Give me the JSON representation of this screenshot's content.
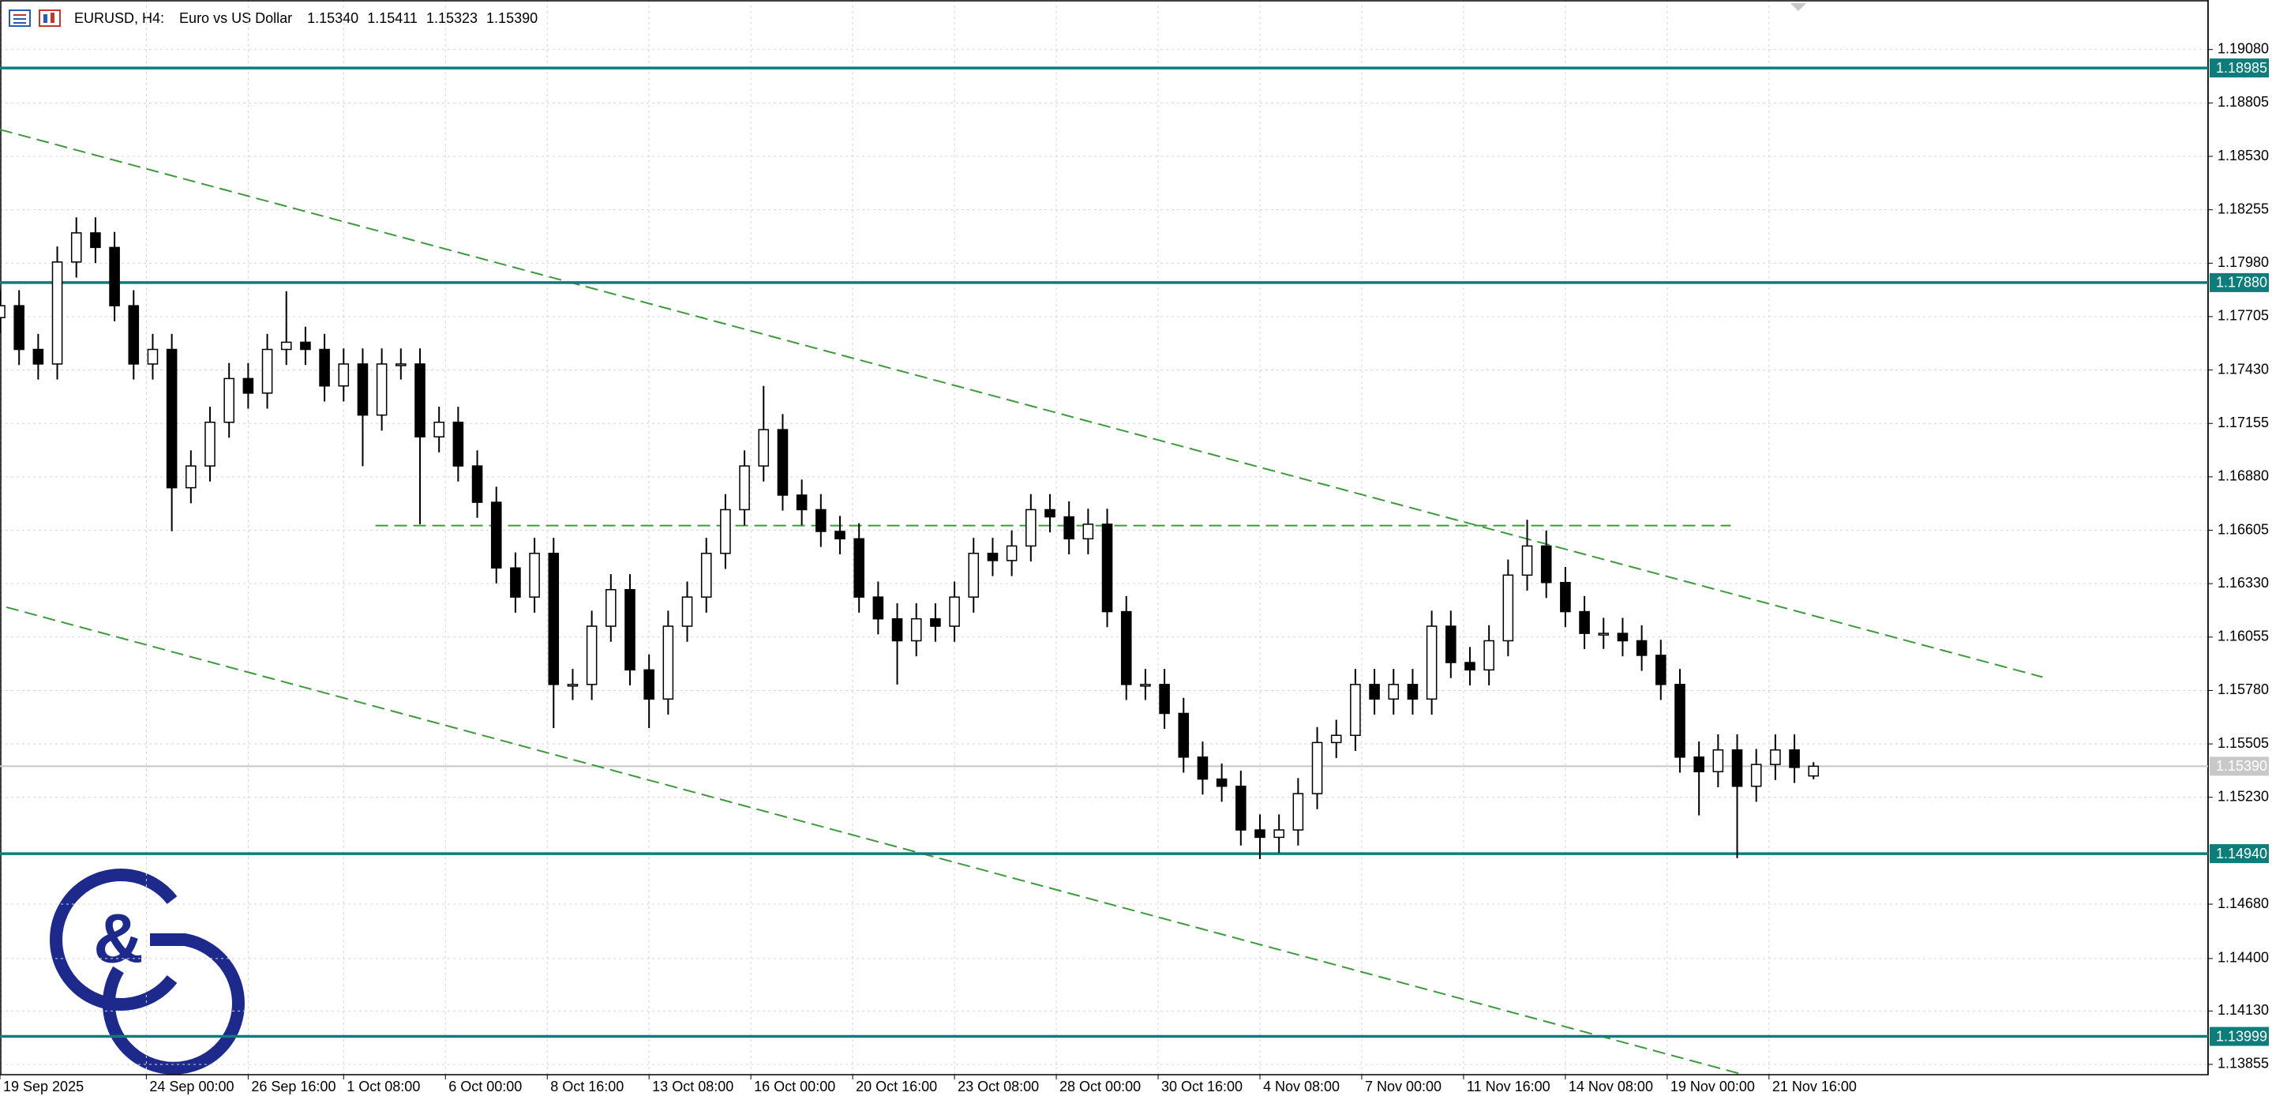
{
  "chart_data": {
    "type": "candlestick",
    "symbol": "EURUSD, H4:",
    "description": "Euro vs US Dollar",
    "ohlc": [
      "1.15340",
      "1.15411",
      "1.15323",
      "1.15390"
    ],
    "watermark": "&",
    "xlim": [
      0,
      347
    ],
    "ylim": [
      1.13802,
      1.19335
    ],
    "grid": true,
    "bull_color": "#ffffff",
    "bear_color": "#000000",
    "level_color": "#0e7c7b",
    "trend_color": "#3c9a3c",
    "yticks": [
      {
        "value": 1.1908,
        "label": "1.19080"
      },
      1.18805,
      {
        "value": 1.1853,
        "label": "1.18530"
      },
      1.18255,
      {
        "value": 1.1798,
        "label": "1.17980"
      },
      1.17705,
      {
        "value": 1.1743,
        "label": "1.17430"
      },
      1.17155,
      {
        "value": 1.1688,
        "label": "1.16880"
      },
      1.16605,
      {
        "value": 1.1633,
        "label": "1.16330"
      },
      1.16055,
      {
        "value": 1.1578,
        "label": "1.15780"
      },
      1.15505,
      {
        "value": 1.1523,
        "label": "1.15230"
      },
      {
        "value": 1.1468,
        "label": "1.14680"
      },
      {
        "value": 1.144,
        "label": "1.14400"
      },
      {
        "value": 1.1413,
        "label": "1.14130"
      },
      1.13855
    ],
    "xticks": [
      {
        "value": 0,
        "label": "19 Sep 2025"
      },
      {
        "value": 23,
        "label": "24 Sep 00:00"
      },
      {
        "value": 39,
        "label": "26 Sep 16:00"
      },
      {
        "value": 54,
        "label": "1 Oct 08:00"
      },
      {
        "value": 70,
        "label": "6 Oct 00:00"
      },
      {
        "value": 86,
        "label": "8 Oct 16:00"
      },
      {
        "value": 102,
        "label": "13 Oct 08:00"
      },
      {
        "value": 118,
        "label": "16 Oct 00:00"
      },
      {
        "value": 134,
        "label": "20 Oct 16:00"
      },
      {
        "value": 150,
        "label": "23 Oct 08:00"
      },
      {
        "value": 166,
        "label": "28 Oct 00:00"
      },
      {
        "value": 182,
        "label": "30 Oct 16:00"
      },
      {
        "value": 198,
        "label": "4 Nov 08:00"
      },
      {
        "value": 214,
        "label": "7 Nov 00:00"
      },
      {
        "value": 230,
        "label": "11 Nov 16:00"
      },
      {
        "value": 246,
        "label": "14 Nov 08:00"
      },
      {
        "value": 262,
        "label": "19 Nov 00:00"
      },
      {
        "value": 278,
        "label": "21 Nov 16:00"
      }
    ],
    "levels": [
      1.18985,
      {
        "value": 1.1788,
        "label": "1.17880"
      },
      {
        "value": 1.1494,
        "label": "1.14940"
      },
      1.13999
    ],
    "current_price": {
      "value": 1.1539,
      "label": "1.15390"
    },
    "trendlines": [
      {
        "x": [
          0,
          321
        ],
        "y": [
          1.18668,
          1.15849
        ]
      },
      {
        "x": [
          1,
          274
        ],
        "y": [
          1.16209,
          1.13802
        ]
      },
      {
        "x": [
          59,
          272
        ],
        "y": [
          1.16629,
          1.16629
        ]
      }
    ],
    "x": [
      0,
      3,
      6,
      9,
      12,
      15,
      18,
      21,
      24,
      27,
      30,
      33,
      36,
      39,
      42,
      45,
      48,
      51,
      54,
      57,
      60,
      63,
      66,
      69,
      72,
      75,
      78,
      81,
      84,
      87,
      90,
      93,
      96,
      99,
      102,
      105,
      108,
      111,
      114,
      117,
      120,
      123,
      126,
      129,
      132,
      135,
      138,
      141,
      144,
      147,
      150,
      153,
      156,
      159,
      162,
      165,
      168,
      171,
      174,
      177,
      180,
      183,
      186,
      189,
      192,
      195,
      198,
      201,
      204,
      207,
      210,
      213,
      216,
      219,
      222,
      225,
      228,
      231,
      234,
      237,
      240,
      243,
      246,
      249,
      252,
      255,
      258,
      261,
      264,
      267,
      270,
      273,
      276,
      279,
      282,
      285
    ],
    "open": [
      1.177,
      1.17761,
      1.17536,
      1.17461,
      1.17986,
      1.18136,
      1.18061,
      1.17761,
      1.17461,
      1.17536,
      1.16824,
      1.16936,
      1.17161,
      1.17386,
      1.17311,
      1.17536,
      1.17573,
      1.17536,
      1.17348,
      1.17461,
      1.17198,
      1.17461,
      1.17461,
      1.17086,
      1.17161,
      1.16936,
      1.16749,
      1.16411,
      1.16261,
      1.16486,
      1.15811,
      1.15811,
      1.16111,
      1.16299,
      1.15886,
      1.15736,
      1.16111,
      1.16261,
      1.16486,
      1.16711,
      1.16936,
      1.17123,
      1.16786,
      1.16711,
      1.16599,
      1.16561,
      1.16261,
      1.16149,
      1.16036,
      1.16149,
      1.16111,
      1.16261,
      1.16486,
      1.16449,
      1.16524,
      1.16711,
      1.16674,
      1.16561,
      1.16636,
      1.16186,
      1.15811,
      1.15811,
      1.15662,
      1.15437,
      1.15324,
      1.15287,
      1.15062,
      1.15024,
      1.15062,
      1.15249,
      1.15512,
      1.15549,
      1.15811,
      1.15736,
      1.15811,
      1.15736,
      1.16111,
      1.15924,
      1.15886,
      1.16036,
      1.16374,
      1.16524,
      1.16336,
      1.16186,
      1.16074,
      1.16074,
      1.16036,
      1.15961,
      1.15811,
      1.15437,
      1.15362,
      1.15474,
      1.15287,
      1.15399,
      1.15474,
      1.1534
    ],
    "high": [
      1.17841,
      1.17841,
      1.17616,
      1.18066,
      1.18216,
      1.18216,
      1.18141,
      1.17841,
      1.17616,
      1.17616,
      1.17016,
      1.17241,
      1.17466,
      1.17466,
      1.17616,
      1.17836,
      1.17653,
      1.17616,
      1.17541,
      1.17541,
      1.17541,
      1.17541,
      1.17541,
      1.17241,
      1.17241,
      1.17016,
      1.16829,
      1.16491,
      1.16566,
      1.16566,
      1.15891,
      1.16191,
      1.16379,
      1.16379,
      1.15966,
      1.16191,
      1.16341,
      1.16566,
      1.16791,
      1.17016,
      1.17348,
      1.17203,
      1.16866,
      1.16791,
      1.16679,
      1.16641,
      1.16341,
      1.16229,
      1.16229,
      1.16229,
      1.16341,
      1.16566,
      1.16566,
      1.16604,
      1.16791,
      1.16791,
      1.16754,
      1.16716,
      1.16716,
      1.16266,
      1.15891,
      1.15891,
      1.15742,
      1.15517,
      1.15404,
      1.15367,
      1.15142,
      1.15142,
      1.15329,
      1.15592,
      1.15629,
      1.15891,
      1.15891,
      1.15891,
      1.15891,
      1.16191,
      1.16191,
      1.16004,
      1.16116,
      1.16454,
      1.16659,
      1.16604,
      1.16416,
      1.16266,
      1.16154,
      1.16154,
      1.16116,
      1.16041,
      1.15891,
      1.15517,
      1.15554,
      1.15554,
      1.15479,
      1.15554,
      1.15554,
      1.15411
    ],
    "low": [
      1.1762,
      1.17456,
      1.17381,
      1.17381,
      1.17906,
      1.17981,
      1.17681,
      1.17381,
      1.17381,
      1.166,
      1.16744,
      1.16856,
      1.17081,
      1.17231,
      1.17231,
      1.17456,
      1.17456,
      1.17268,
      1.17268,
      1.16935,
      1.17118,
      1.17381,
      1.16636,
      1.17006,
      1.16856,
      1.16669,
      1.16331,
      1.16181,
      1.16181,
      1.15586,
      1.15731,
      1.15731,
      1.16031,
      1.15806,
      1.15586,
      1.15656,
      1.16031,
      1.16181,
      1.16406,
      1.16631,
      1.16856,
      1.16706,
      1.16631,
      1.16519,
      1.16481,
      1.16181,
      1.16069,
      1.15811,
      1.15956,
      1.16031,
      1.16031,
      1.16181,
      1.16369,
      1.16369,
      1.16444,
      1.16594,
      1.16481,
      1.16481,
      1.16106,
      1.15731,
      1.15731,
      1.15582,
      1.15357,
      1.15244,
      1.15207,
      1.14982,
      1.14912,
      1.14944,
      1.14982,
      1.15169,
      1.15432,
      1.15469,
      1.15656,
      1.15656,
      1.15656,
      1.15656,
      1.15844,
      1.15806,
      1.15806,
      1.15956,
      1.16294,
      1.16256,
      1.16106,
      1.15994,
      1.15994,
      1.15956,
      1.15881,
      1.15731,
      1.15357,
      1.15137,
      1.15282,
      1.14917,
      1.15207,
      1.15319,
      1.15304,
      1.15323
    ],
    "close": [
      1.17761,
      1.17536,
      1.17461,
      1.17986,
      1.18136,
      1.18061,
      1.17761,
      1.17461,
      1.17536,
      1.16824,
      1.16936,
      1.17161,
      1.17386,
      1.17311,
      1.17536,
      1.17573,
      1.17536,
      1.17348,
      1.17461,
      1.17198,
      1.17461,
      1.17461,
      1.17086,
      1.17161,
      1.16936,
      1.16749,
      1.16411,
      1.16261,
      1.16486,
      1.15811,
      1.15811,
      1.16111,
      1.16299,
      1.15886,
      1.15736,
      1.16111,
      1.16261,
      1.16486,
      1.16711,
      1.16936,
      1.17123,
      1.16786,
      1.16711,
      1.16599,
      1.16561,
      1.16261,
      1.16149,
      1.16036,
      1.16149,
      1.16111,
      1.16261,
      1.16486,
      1.16449,
      1.16524,
      1.16711,
      1.16674,
      1.16561,
      1.16636,
      1.16186,
      1.15811,
      1.15811,
      1.15662,
      1.15437,
      1.15324,
      1.15287,
      1.15062,
      1.15024,
      1.15062,
      1.15249,
      1.15512,
      1.15549,
      1.15811,
      1.15736,
      1.15811,
      1.15736,
      1.16111,
      1.15924,
      1.15886,
      1.16036,
      1.16374,
      1.16524,
      1.16336,
      1.16186,
      1.16074,
      1.16074,
      1.16036,
      1.15961,
      1.15811,
      1.15437,
      1.15362,
      1.15474,
      1.15287,
      1.15399,
      1.15474,
      1.15384,
      1.1539
    ]
  }
}
